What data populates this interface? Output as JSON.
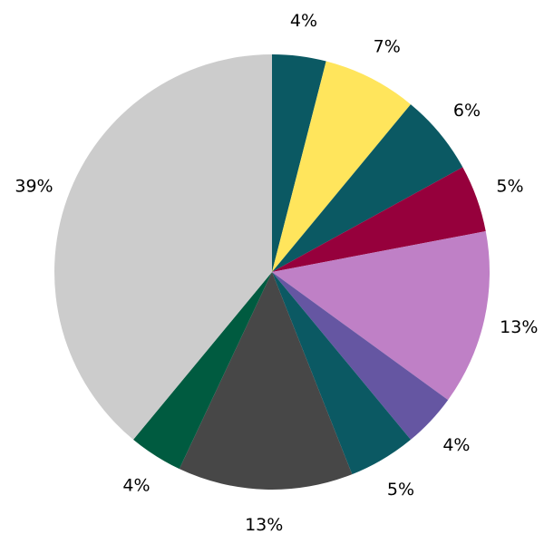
{
  "chart_data": {
    "type": "pie",
    "title": "",
    "start_angle_deg": 90,
    "direction": "clockwise",
    "slices": [
      {
        "value": 4,
        "label": "4%",
        "color": "#0b5963"
      },
      {
        "value": 7,
        "label": "7%",
        "color": "#ffe55c"
      },
      {
        "value": 6,
        "label": "6%",
        "color": "#0b5963"
      },
      {
        "value": 5,
        "label": "5%",
        "color": "#96003c"
      },
      {
        "value": 13,
        "label": "13%",
        "color": "#bf80c6"
      },
      {
        "value": 4,
        "label": "4%",
        "color": "#6556a2"
      },
      {
        "value": 5,
        "label": "5%",
        "color": "#0b5963"
      },
      {
        "value": 13,
        "label": "13%",
        "color": "#474747"
      },
      {
        "value": 4,
        "label": "4%",
        "color": "#005b40"
      },
      {
        "value": 39,
        "label": "39%",
        "color": "#cccccc"
      }
    ]
  }
}
